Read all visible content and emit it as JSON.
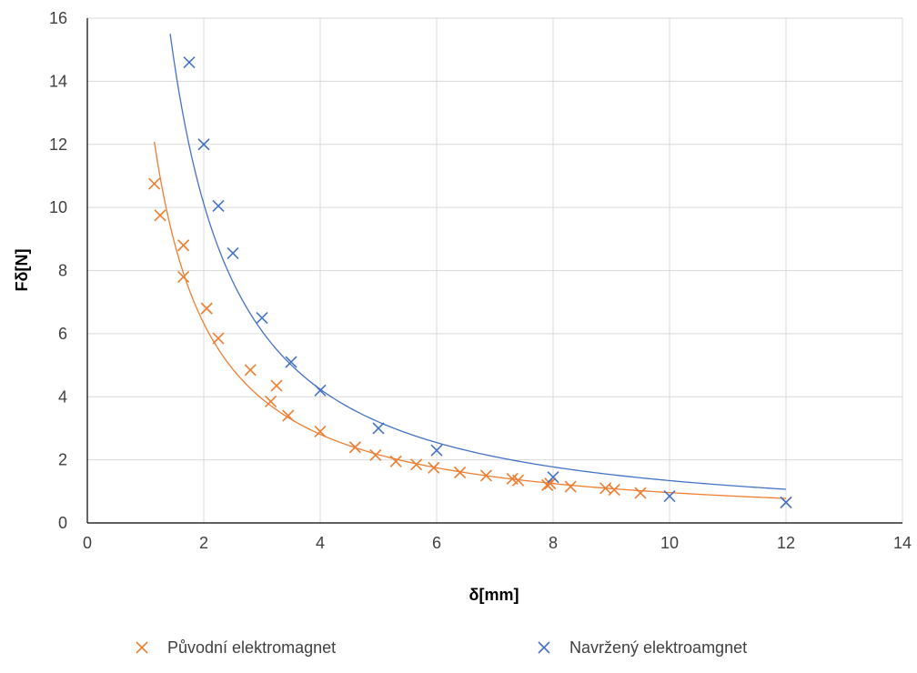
{
  "chart_data": {
    "type": "scatter",
    "xlabel": "δ[mm]",
    "ylabel": "Fδ[N]",
    "xlim": [
      0,
      14
    ],
    "ylim": [
      0,
      16
    ],
    "x_ticks": [
      "0",
      "2",
      "4",
      "6",
      "8",
      "10",
      "12",
      "14"
    ],
    "y_ticks": [
      "0",
      "2",
      "4",
      "6",
      "8",
      "10",
      "12",
      "14",
      "16"
    ],
    "grid": true,
    "legend_position": "bottom",
    "series": [
      {
        "name": "Původní elektromagnet",
        "color": "#ED7D31",
        "marker": "x",
        "points": [
          [
            1.15,
            10.75
          ],
          [
            1.25,
            9.75
          ],
          [
            1.65,
            8.8
          ],
          [
            1.65,
            7.8
          ],
          [
            2.05,
            6.8
          ],
          [
            2.25,
            5.85
          ],
          [
            2.8,
            4.85
          ],
          [
            3.25,
            4.35
          ],
          [
            3.15,
            3.85
          ],
          [
            3.45,
            3.4
          ],
          [
            4.0,
            2.9
          ],
          [
            4.6,
            2.4
          ],
          [
            4.95,
            2.15
          ],
          [
            5.3,
            1.95
          ],
          [
            5.65,
            1.85
          ],
          [
            5.95,
            1.75
          ],
          [
            6.4,
            1.6
          ],
          [
            6.85,
            1.5
          ],
          [
            7.3,
            1.4
          ],
          [
            7.4,
            1.35
          ],
          [
            7.9,
            1.2
          ],
          [
            7.95,
            1.25
          ],
          [
            8.3,
            1.15
          ],
          [
            8.9,
            1.1
          ],
          [
            9.05,
            1.05
          ],
          [
            9.5,
            0.95
          ],
          [
            12.0,
            0.65
          ]
        ],
        "trendline": {
          "type": "power",
          "a": 14.23,
          "b": -1.17,
          "x_range": [
            1.15,
            12.0
          ]
        }
      },
      {
        "name": "Navržený elektroamgnet",
        "color": "#4472C4",
        "marker": "x",
        "points": [
          [
            1.75,
            14.6
          ],
          [
            2.0,
            12.0
          ],
          [
            2.25,
            10.05
          ],
          [
            2.5,
            8.55
          ],
          [
            3.0,
            6.5
          ],
          [
            3.5,
            5.1
          ],
          [
            4.0,
            4.2
          ],
          [
            5.0,
            3.0
          ],
          [
            6.0,
            2.3
          ],
          [
            8.0,
            1.45
          ],
          [
            10.0,
            0.85
          ],
          [
            12.0,
            0.65
          ]
        ],
        "trendline": {
          "type": "power",
          "a": 24.14,
          "b": -1.255,
          "x_range": [
            1.37,
            12.0
          ]
        }
      }
    ]
  }
}
